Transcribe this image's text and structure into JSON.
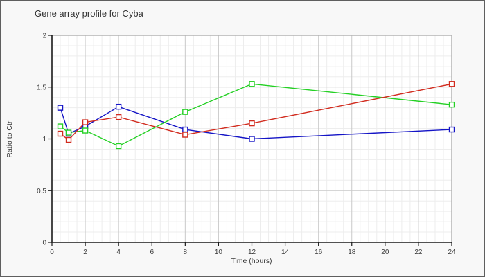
{
  "window": {
    "background": "#f8f8f8",
    "border_color": "#5f5f5f"
  },
  "chart_data": {
    "type": "line",
    "title": "Gene array profile for Cyba",
    "xlabel": "Time (hours)",
    "ylabel": "Ratio to Ctrl",
    "x": [
      0.5,
      1,
      2,
      4,
      8,
      12,
      24
    ],
    "series": [
      {
        "name": "series-blue",
        "color": "#1515c6",
        "values": [
          1.3,
          1.05,
          1.12,
          1.31,
          1.09,
          1.0,
          1.09
        ]
      },
      {
        "name": "series-green",
        "color": "#24d024",
        "values": [
          1.12,
          1.06,
          1.08,
          0.93,
          1.26,
          1.53,
          1.33
        ]
      },
      {
        "name": "series-red",
        "color": "#d12b1e",
        "values": [
          1.05,
          0.99,
          1.16,
          1.21,
          1.04,
          1.15,
          1.53
        ]
      }
    ],
    "xlim": [
      0,
      24
    ],
    "ylim": [
      0,
      2
    ],
    "x_major_ticks": [
      0,
      2,
      4,
      6,
      8,
      10,
      12,
      14,
      16,
      18,
      20,
      22,
      24
    ],
    "y_major_ticks": [
      0,
      0.5,
      1,
      1.5,
      2
    ],
    "x_tick_labels": [
      "0",
      "2",
      "4",
      "6",
      "8",
      "10",
      "12",
      "14",
      "16",
      "18",
      "20",
      "22",
      "24"
    ],
    "y_tick_labels": [
      "0",
      "0.5",
      "1",
      "1.5",
      "2"
    ],
    "x_minor_step": 0.5,
    "y_minor_step": 0.1,
    "grid": true,
    "legend": "none",
    "marker": "open-square",
    "marker_fill": "#ffffff",
    "plot_background": "#ffffff",
    "minor_grid_color": "#ededed",
    "major_grid_color": "#c9c9c9",
    "frame_color": "#b3b3b3",
    "axis_color": "#1a1a1a",
    "tick_label_color": "#3a3a3a"
  }
}
